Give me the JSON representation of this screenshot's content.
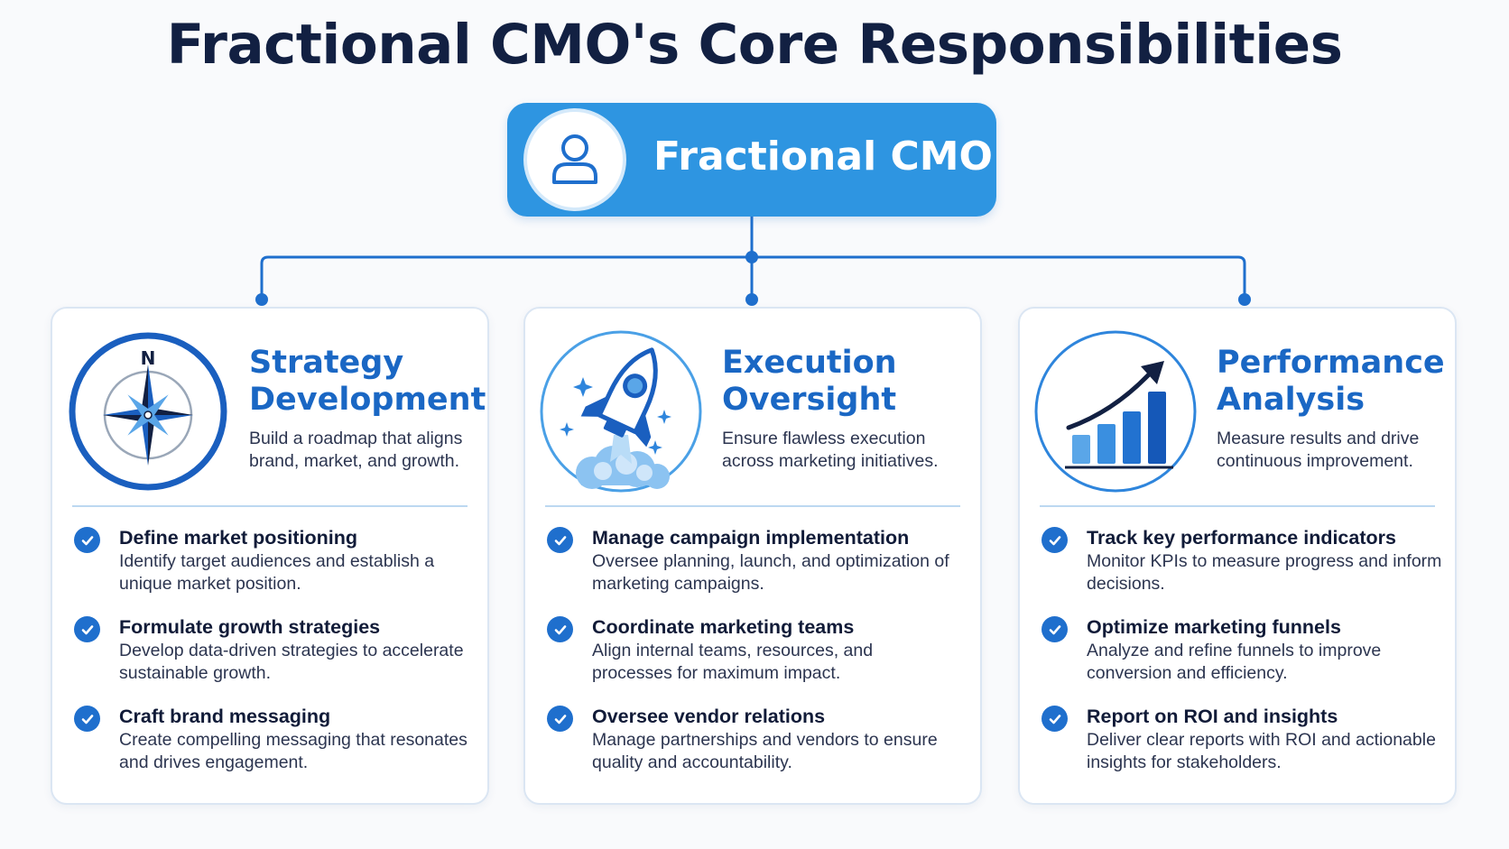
{
  "title": "Fractional CMO's Core Responsibilities",
  "root": {
    "label": "Fractional CMO",
    "icon": "user-icon"
  },
  "colors": {
    "primary": "#2e95e1",
    "accent": "#1a67c4",
    "dark_text": "#122042",
    "check": "#1f6fcd"
  },
  "cards": [
    {
      "title": "Strategy Development",
      "icon": "compass-icon",
      "compass_label": "N",
      "description": "Build a roadmap that aligns brand, market, and growth.",
      "items": [
        {
          "title": "Define market positioning",
          "description": "Identify target audiences and establish a unique market position."
        },
        {
          "title": "Formulate growth strategies",
          "description": "Develop data-driven strategies to accelerate sustainable growth."
        },
        {
          "title": "Craft brand messaging",
          "description": "Create compelling messaging that resonates and drives engagement."
        }
      ]
    },
    {
      "title": "Execution Oversight",
      "icon": "rocket-icon",
      "description": "Ensure flawless execution across marketing initiatives.",
      "items": [
        {
          "title": "Manage campaign implementation",
          "description": "Oversee planning, launch, and optimization of marketing campaigns."
        },
        {
          "title": "Coordinate marketing teams",
          "description": "Align internal teams, resources, and processes for maximum impact."
        },
        {
          "title": "Oversee vendor relations",
          "description": "Manage partnerships and vendors to ensure quality and accountability."
        }
      ]
    },
    {
      "title": "Performance Analysis",
      "icon": "growth-chart-icon",
      "description": "Measure results and drive continuous improvement.",
      "items": [
        {
          "title": "Track key performance indicators",
          "description": "Monitor KPIs to measure progress and inform decisions."
        },
        {
          "title": "Optimize marketing funnels",
          "description": "Analyze and refine funnels to improve conversion and efficiency."
        },
        {
          "title": "Report on ROI and insights",
          "description": "Deliver clear reports with ROI and actionable insights for stakeholders."
        }
      ]
    }
  ]
}
